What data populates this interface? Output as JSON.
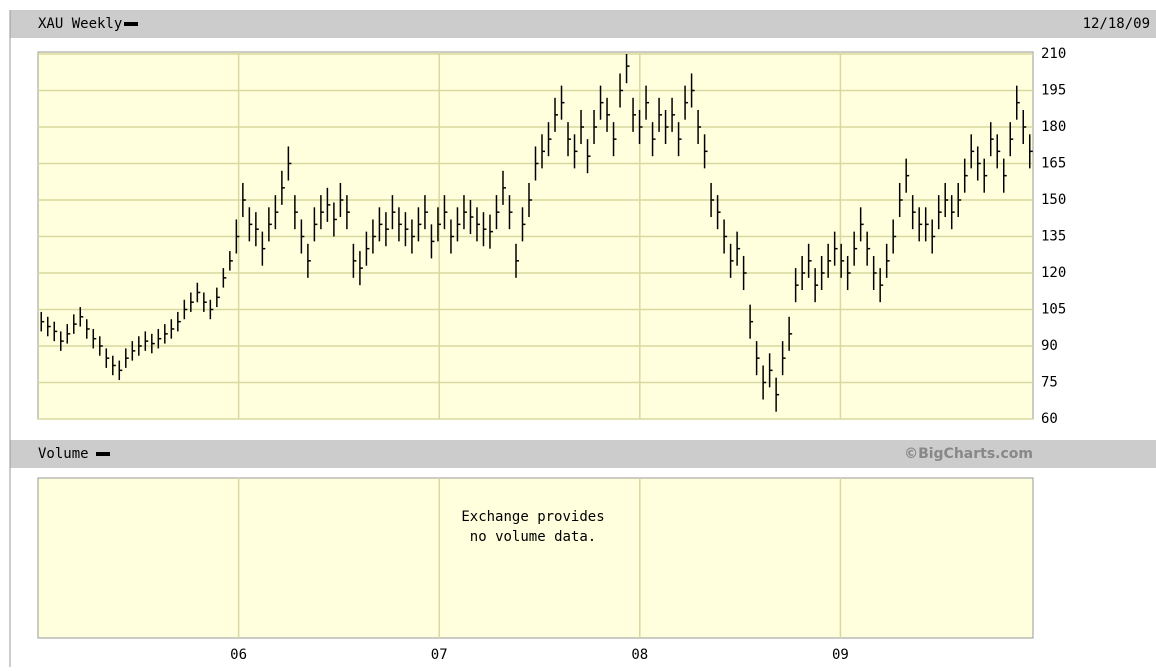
{
  "chart_data": {
    "type": "ohlc",
    "title": "XAU Weekly",
    "date": "12/18/09",
    "high": [
      104,
      102,
      100,
      96,
      99,
      103,
      106,
      101,
      97,
      94,
      89,
      86,
      84,
      89,
      92,
      94,
      96,
      95,
      97,
      99,
      101,
      104,
      109,
      112,
      116,
      112,
      109,
      114,
      122,
      129,
      142,
      157,
      147,
      145,
      137,
      147,
      152,
      162,
      172,
      152,
      142,
      132,
      147,
      152,
      155,
      149,
      157,
      152,
      132,
      129,
      137,
      142,
      147,
      145,
      152,
      147,
      145,
      142,
      147,
      152,
      140,
      147,
      152,
      142,
      147,
      152,
      150,
      147,
      145,
      144,
      152,
      162,
      152,
      132,
      147,
      157,
      172,
      177,
      182,
      192,
      197,
      182,
      177,
      187,
      175,
      187,
      197,
      192,
      182,
      202,
      210,
      192,
      187,
      197,
      182,
      192,
      187,
      192,
      182,
      197,
      202,
      187,
      177,
      157,
      152,
      142,
      132,
      137,
      127,
      107,
      92,
      82,
      87,
      77,
      92,
      102,
      122,
      127,
      132,
      122,
      127,
      132,
      137,
      132,
      127,
      137,
      147,
      137,
      127,
      122,
      132,
      142,
      157,
      167,
      152,
      147,
      147,
      142,
      152,
      157,
      152,
      157,
      167,
      177,
      172,
      167,
      182,
      177,
      167,
      182,
      197,
      187,
      177
    ],
    "low": [
      96,
      94,
      92,
      88,
      91,
      95,
      98,
      93,
      89,
      86,
      81,
      78,
      76,
      81,
      84,
      86,
      88,
      87,
      89,
      91,
      93,
      96,
      101,
      104,
      108,
      104,
      101,
      106,
      114,
      121,
      128,
      143,
      133,
      131,
      123,
      133,
      138,
      148,
      158,
      138,
      128,
      118,
      133,
      138,
      141,
      135,
      143,
      138,
      118,
      115,
      123,
      128,
      133,
      131,
      138,
      133,
      131,
      128,
      133,
      138,
      126,
      133,
      138,
      128,
      133,
      138,
      136,
      133,
      131,
      130,
      138,
      148,
      138,
      118,
      133,
      143,
      158,
      163,
      168,
      178,
      183,
      168,
      163,
      173,
      161,
      173,
      183,
      178,
      168,
      188,
      198,
      178,
      173,
      183,
      168,
      178,
      173,
      178,
      168,
      183,
      188,
      173,
      163,
      143,
      138,
      128,
      118,
      123,
      113,
      93,
      78,
      68,
      73,
      63,
      78,
      88,
      108,
      113,
      118,
      108,
      113,
      118,
      123,
      118,
      113,
      123,
      133,
      123,
      113,
      108,
      118,
      128,
      143,
      153,
      138,
      133,
      133,
      128,
      138,
      143,
      138,
      143,
      153,
      163,
      158,
      153,
      168,
      163,
      153,
      168,
      183,
      173,
      163
    ],
    "close": [
      100,
      98,
      96,
      92,
      95,
      99,
      102,
      97,
      93,
      90,
      85,
      82,
      80,
      85,
      88,
      90,
      92,
      91,
      93,
      95,
      97,
      100,
      105,
      108,
      112,
      108,
      105,
      110,
      118,
      125,
      135,
      150,
      140,
      138,
      130,
      140,
      145,
      155,
      165,
      145,
      135,
      125,
      140,
      145,
      148,
      142,
      150,
      145,
      125,
      122,
      130,
      135,
      140,
      138,
      145,
      140,
      138,
      135,
      140,
      145,
      133,
      140,
      145,
      135,
      140,
      145,
      143,
      140,
      138,
      137,
      145,
      155,
      145,
      125,
      140,
      150,
      165,
      170,
      175,
      185,
      190,
      175,
      170,
      180,
      168,
      180,
      190,
      185,
      175,
      195,
      205,
      185,
      180,
      190,
      175,
      185,
      180,
      185,
      175,
      190,
      195,
      180,
      170,
      150,
      145,
      135,
      125,
      130,
      120,
      100,
      85,
      75,
      80,
      70,
      85,
      95,
      115,
      120,
      125,
      115,
      120,
      125,
      130,
      125,
      120,
      130,
      140,
      130,
      120,
      115,
      125,
      135,
      150,
      160,
      145,
      140,
      140,
      135,
      145,
      150,
      145,
      150,
      160,
      170,
      165,
      160,
      175,
      170,
      160,
      175,
      190,
      180,
      170
    ],
    "color": "#000000",
    "ylim": [
      60,
      210
    ],
    "yticks": [
      60,
      75,
      90,
      105,
      120,
      135,
      150,
      165,
      180,
      195,
      210
    ],
    "xlim": [
      2005,
      2009.96
    ],
    "xticks": [
      {
        "value": 2006,
        "label": "06"
      },
      {
        "value": 2007,
        "label": "07"
      },
      {
        "value": 2008,
        "label": "08"
      },
      {
        "value": 2009,
        "label": "09"
      }
    ],
    "grid": true
  },
  "volume": {
    "title": "Volume",
    "message": [
      "Exchange provides",
      "no volume data."
    ]
  },
  "credit": "©BigCharts.com"
}
